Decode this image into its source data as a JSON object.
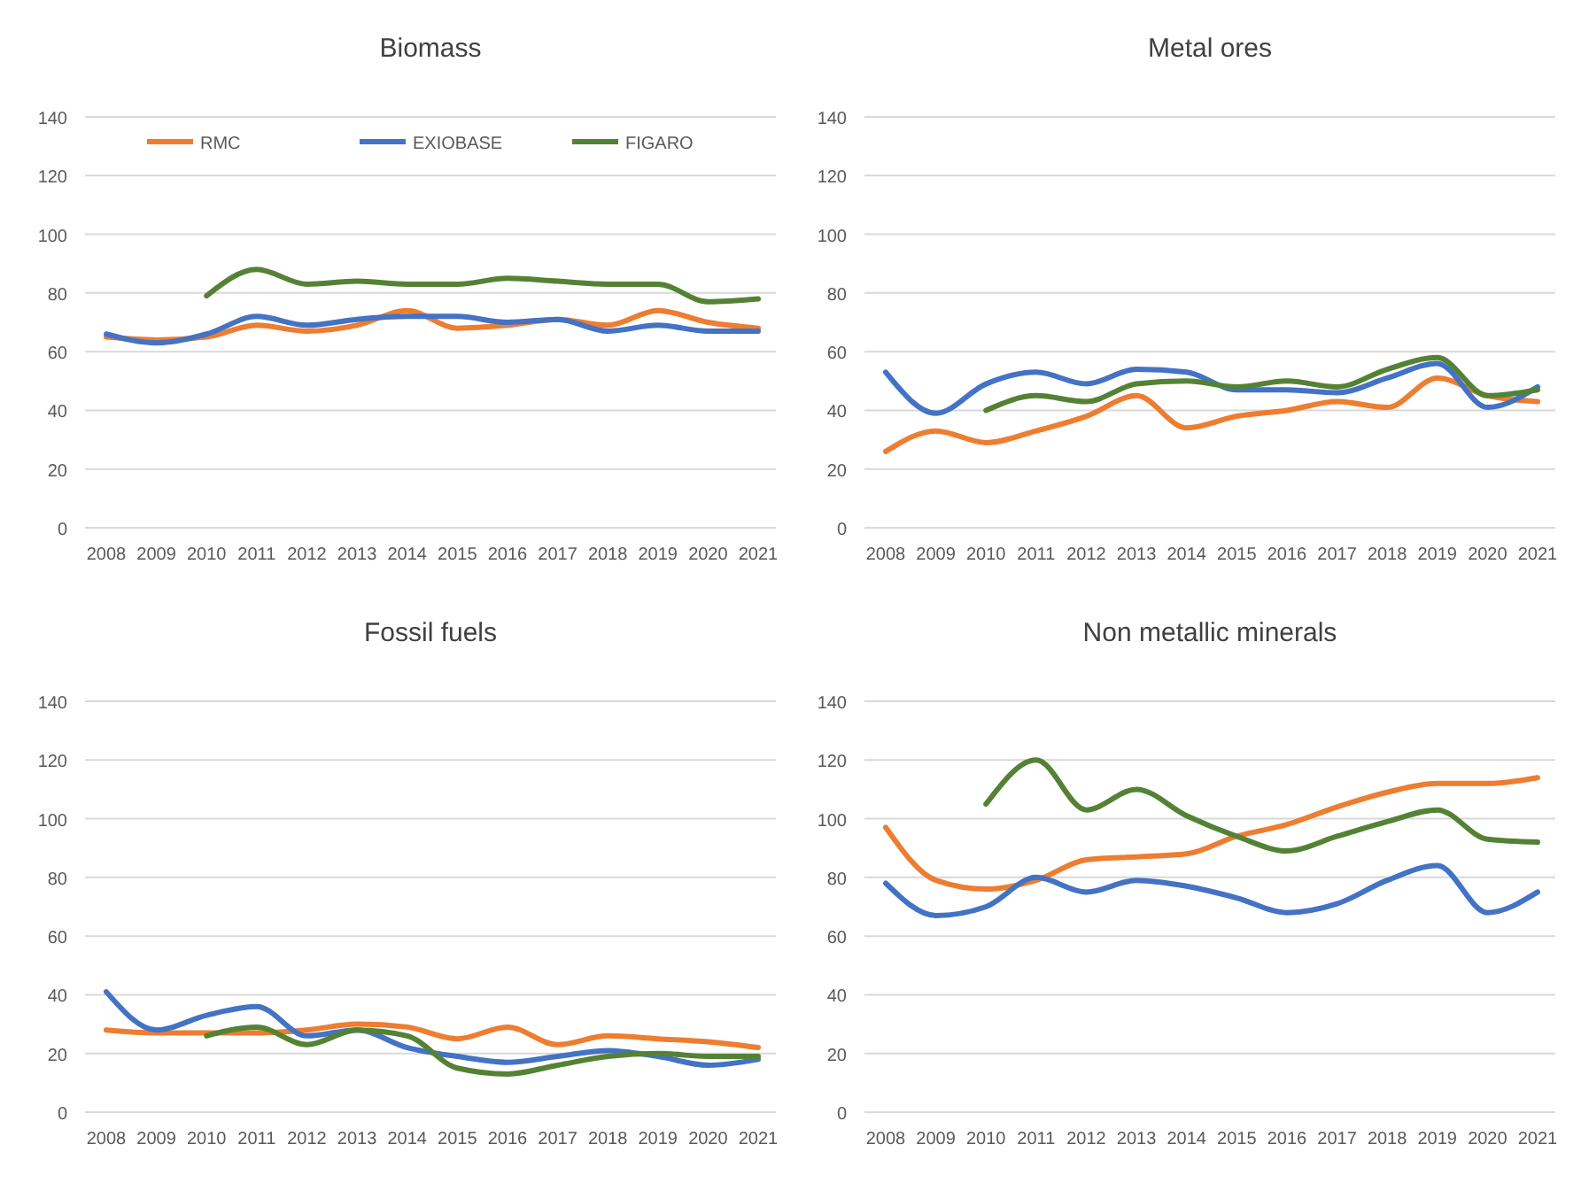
{
  "chart_data": [
    {
      "type": "line",
      "title": "Biomass",
      "categories": [
        "2008",
        "2009",
        "2010",
        "2011",
        "2012",
        "2013",
        "2014",
        "2015",
        "2016",
        "2017",
        "2018",
        "2019",
        "2020",
        "2021"
      ],
      "ylim": [
        0,
        140
      ],
      "yticks": [
        0,
        20,
        40,
        60,
        80,
        100,
        120,
        140
      ],
      "grid": "y",
      "legend": "top",
      "series": [
        {
          "name": "RMC",
          "color": "#ed7d31",
          "values": [
            65,
            64,
            65,
            69,
            67,
            69,
            74,
            68,
            69,
            71,
            69,
            74,
            70,
            68
          ]
        },
        {
          "name": "EXIOBASE",
          "color": "#4472c4",
          "values": [
            66,
            63,
            66,
            72,
            69,
            71,
            72,
            72,
            70,
            71,
            67,
            69,
            67,
            67
          ]
        },
        {
          "name": "FIGARO",
          "color": "#548235",
          "values": [
            null,
            null,
            79,
            88,
            83,
            84,
            83,
            83,
            85,
            84,
            83,
            83,
            77,
            78
          ]
        }
      ]
    },
    {
      "type": "line",
      "title": "Metal ores",
      "categories": [
        "2008",
        "2009",
        "2010",
        "2011",
        "2012",
        "2013",
        "2014",
        "2015",
        "2016",
        "2017",
        "2018",
        "2019",
        "2020",
        "2021"
      ],
      "ylim": [
        0,
        140
      ],
      "yticks": [
        0,
        20,
        40,
        60,
        80,
        100,
        120,
        140
      ],
      "grid": "y",
      "series": [
        {
          "color": "#ed7d31",
          "values": [
            26,
            33,
            29,
            33,
            38,
            45,
            34,
            38,
            40,
            43,
            41,
            51,
            45,
            43
          ]
        },
        {
          "color": "#4472c4",
          "values": [
            53,
            39,
            49,
            53,
            49,
            54,
            53,
            47,
            47,
            46,
            51,
            56,
            41,
            48
          ]
        },
        {
          "color": "#548235",
          "values": [
            null,
            null,
            40,
            45,
            43,
            49,
            50,
            48,
            50,
            48,
            54,
            58,
            45,
            47
          ]
        }
      ]
    },
    {
      "type": "line",
      "title": "Fossil fuels",
      "categories": [
        "2008",
        "2009",
        "2010",
        "2011",
        "2012",
        "2013",
        "2014",
        "2015",
        "2016",
        "2017",
        "2018",
        "2019",
        "2020",
        "2021"
      ],
      "ylim": [
        0,
        140
      ],
      "yticks": [
        0,
        20,
        40,
        60,
        80,
        100,
        120,
        140
      ],
      "grid": "y",
      "series": [
        {
          "color": "#ed7d31",
          "values": [
            28,
            27,
            27,
            27,
            28,
            30,
            29,
            25,
            29,
            23,
            26,
            25,
            24,
            22
          ]
        },
        {
          "color": "#4472c4",
          "values": [
            41,
            28,
            33,
            36,
            26,
            28,
            22,
            19,
            17,
            19,
            21,
            19,
            16,
            18
          ]
        },
        {
          "color": "#548235",
          "values": [
            null,
            null,
            26,
            29,
            23,
            28,
            26,
            15,
            13,
            16,
            19,
            20,
            19,
            19
          ]
        }
      ]
    },
    {
      "type": "line",
      "title": "Non metallic minerals",
      "categories": [
        "2008",
        "2009",
        "2010",
        "2011",
        "2012",
        "2013",
        "2014",
        "2015",
        "2016",
        "2017",
        "2018",
        "2019",
        "2020",
        "2021"
      ],
      "ylim": [
        0,
        140
      ],
      "yticks": [
        0,
        20,
        40,
        60,
        80,
        100,
        120,
        140
      ],
      "grid": "y",
      "series": [
        {
          "color": "#ed7d31",
          "values": [
            97,
            79,
            76,
            79,
            86,
            87,
            88,
            94,
            98,
            104,
            109,
            112,
            112,
            114
          ]
        },
        {
          "color": "#4472c4",
          "values": [
            78,
            67,
            70,
            80,
            75,
            79,
            77,
            73,
            68,
            71,
            79,
            84,
            68,
            75
          ]
        },
        {
          "color": "#548235",
          "values": [
            null,
            null,
            105,
            120,
            103,
            110,
            101,
            94,
            89,
            94,
            99,
            103,
            93,
            92
          ]
        }
      ]
    }
  ]
}
